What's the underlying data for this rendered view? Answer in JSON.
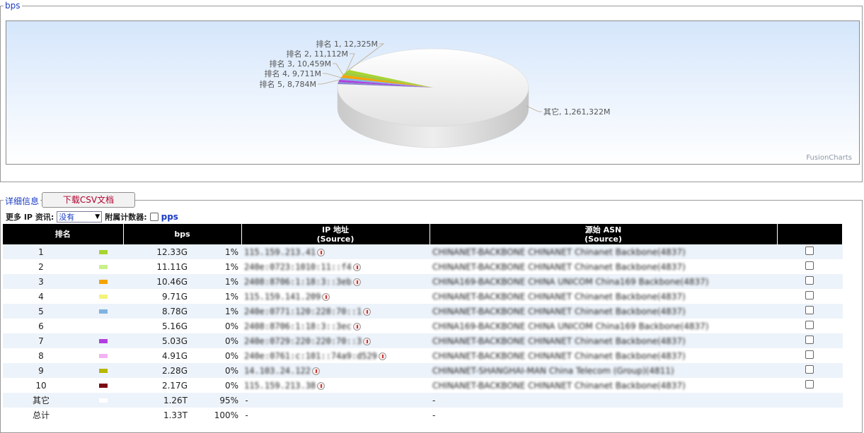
{
  "bps_section": {
    "legend": "bps",
    "brand": "FusionCharts",
    "pie_labels": [
      "排名 1, 12,325M",
      "排名 2, 11,112M",
      "排名 3, 10,459M",
      "排名 4, 9,711M",
      "排名 5, 8,784M",
      "其它, 1,261,322M"
    ]
  },
  "details": {
    "legend": "详细信息",
    "csv_button": "下载CSV文档",
    "more_ip_label": "更多 IP 资讯:",
    "more_ip_value": "没有",
    "counter_label": "附属计数器:",
    "pps_label": "pps"
  },
  "table": {
    "headers": {
      "rank": "排名",
      "bps": "bps",
      "ip_line1": "IP 地址",
      "ip_line2": "(Source)",
      "asn_line1": "源始 ASN",
      "asn_line2": "(Source)"
    },
    "rows": [
      {
        "rank": "1",
        "color": "#a8d42c",
        "value": "12.33G",
        "pct": "1%",
        "ip": "115.159.213.41",
        "asn": "CHINANET-BACKBONE CHINANET Chinanet Backbone(4837)"
      },
      {
        "rank": "2",
        "color": "#c9f08a",
        "value": "11.11G",
        "pct": "1%",
        "ip": "240e:0723:1010:11::f4",
        "asn": "CHINANET-BACKBONE CHINANET Chinanet Backbone(4837)"
      },
      {
        "rank": "3",
        "color": "#f5a300",
        "value": "10.46G",
        "pct": "1%",
        "ip": "2408:8706:1:18:3::3eb",
        "asn": "CHINA169-BACKBONE CHINA UNICOM China169 Backbone(4837)"
      },
      {
        "rank": "4",
        "color": "#f3f37a",
        "value": "9.71G",
        "pct": "1%",
        "ip": "115.159.141.209",
        "asn": "CHINANET-BACKBONE CHINANET Chinanet Backbone(4837)"
      },
      {
        "rank": "5",
        "color": "#7fb2e0",
        "value": "8.78G",
        "pct": "1%",
        "ip": "240e:0771:120:228:70::1",
        "asn": "CHINANET-BACKBONE CHINANET Chinanet Backbone(4837)"
      },
      {
        "rank": "6",
        "color": "",
        "value": "5.16G",
        "pct": "0%",
        "ip": "2408:8706:1:18:3::3ec",
        "asn": "CHINA169-BACKBONE CHINA UNICOM China169 Backbone(4837)"
      },
      {
        "rank": "7",
        "color": "#b23ee0",
        "value": "5.03G",
        "pct": "0%",
        "ip": "240e:0729:220:220:70::3",
        "asn": "CHINANET-BACKBONE CHINANET Chinanet Backbone(4837)"
      },
      {
        "rank": "8",
        "color": "#f3b3f0",
        "value": "4.91G",
        "pct": "0%",
        "ip": "240e:0761:c:101::74a9:d529",
        "asn": "CHINANET-BACKBONE CHINANET Chinanet Backbone(4837)"
      },
      {
        "rank": "9",
        "color": "#b8b800",
        "value": "2.28G",
        "pct": "0%",
        "ip": "14.103.24.122",
        "asn": "CHINANET-SHANGHAI-MAN China Telecom (Group)(4811)"
      },
      {
        "rank": "10",
        "color": "#7a0a14",
        "value": "2.17G",
        "pct": "0%",
        "ip": "115.159.213.38",
        "asn": "CHINANET-BACKBONE CHINANET Chinanet Backbone(4837)"
      }
    ],
    "other_row": {
      "rank": "其它",
      "color": "#ffffff",
      "value": "1.26T",
      "pct": "95%",
      "ip": "-",
      "asn": "-"
    },
    "total_row": {
      "rank": "总计",
      "value": "1.33T",
      "pct": "100%",
      "ip": "-",
      "asn": "-"
    }
  }
}
